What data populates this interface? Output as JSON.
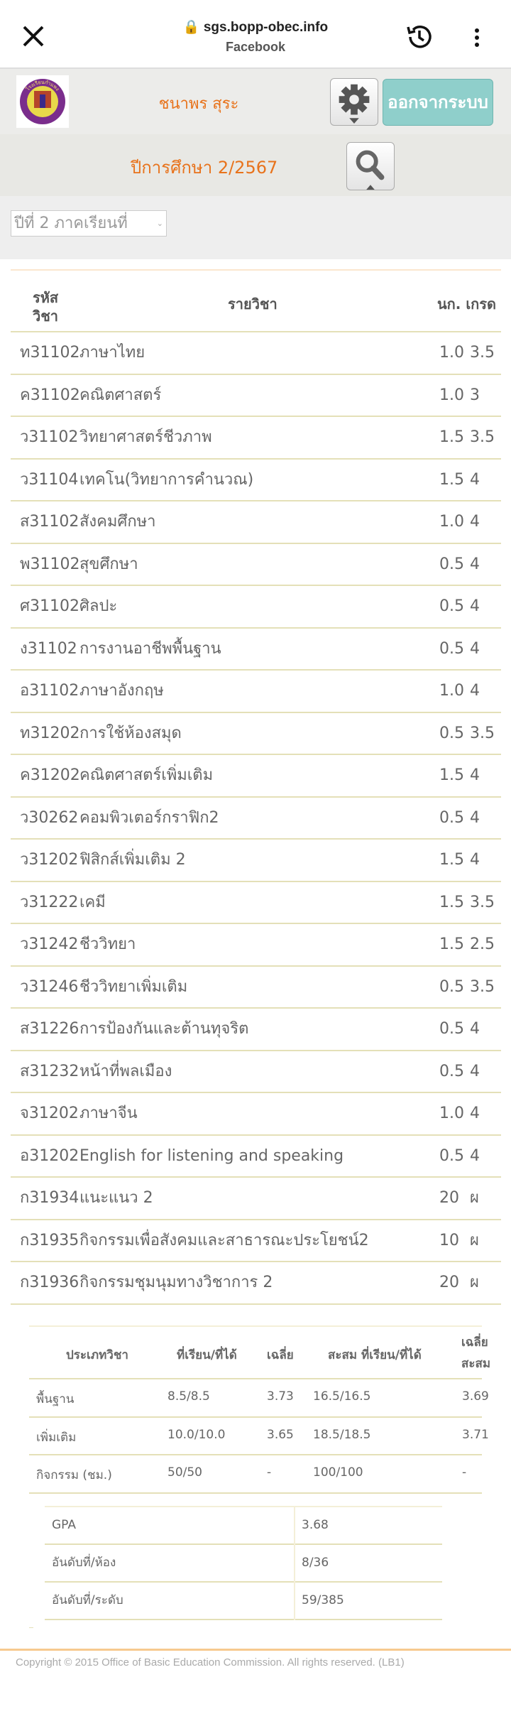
{
  "browser": {
    "url": "sgs.bopp-obec.info",
    "subtitle": "Facebook"
  },
  "header": {
    "student_name": "ชนาพร  สุระ",
    "logout_label": "ออกจากระบบ",
    "school_logo_text": "โรงเรียนกำแพง"
  },
  "term": {
    "label": "ปีการศึกษา  2/2567",
    "select_value": "ปีที่  2  ภาคเรียนที่"
  },
  "grades": {
    "headers": {
      "code_line1": "รหัส",
      "code_line2": "วิชา",
      "subject": "รายวิชา",
      "credit_grade": "นก. เกรด"
    },
    "rows": [
      {
        "code": "ท31102",
        "subject": "ภาษาไทย",
        "credit": "1.0",
        "grade": "3.5"
      },
      {
        "code": "ค31102",
        "subject": "คณิตศาสตร์",
        "credit": "1.0",
        "grade": "3"
      },
      {
        "code": "ว31102",
        "subject": "วิทยาศาสตร์ชีวภาพ",
        "credit": "1.5",
        "grade": "3.5"
      },
      {
        "code": "ว31104",
        "subject": "เทคโน(วิทยาการคำนวณ)",
        "credit": "1.5",
        "grade": "4"
      },
      {
        "code": "ส31102",
        "subject": "สังคมศึกษา",
        "credit": "1.0",
        "grade": "4"
      },
      {
        "code": "พ31102",
        "subject": "สุขศึกษา",
        "credit": "0.5",
        "grade": "4"
      },
      {
        "code": "ศ31102",
        "subject": "ศิลปะ",
        "credit": "0.5",
        "grade": "4"
      },
      {
        "code": "ง31102",
        "subject": "การงานอาชีพพื้นฐาน",
        "credit": "0.5",
        "grade": "4"
      },
      {
        "code": "อ31102",
        "subject": "ภาษาอังกฤษ",
        "credit": "1.0",
        "grade": "4"
      },
      {
        "code": "ท31202",
        "subject": "การใช้ห้องสมุด",
        "credit": "0.5",
        "grade": "3.5"
      },
      {
        "code": "ค31202",
        "subject": "คณิตศาสตร์เพิ่มเติม",
        "credit": "1.5",
        "grade": "4"
      },
      {
        "code": "ว30262",
        "subject": "คอมพิวเตอร์กราฟิก2",
        "credit": "0.5",
        "grade": "4"
      },
      {
        "code": "ว31202",
        "subject": "ฟิสิกส์เพิ่มเติม  2",
        "credit": "1.5",
        "grade": "4"
      },
      {
        "code": "ว31222",
        "subject": "เคมี",
        "credit": "1.5",
        "grade": "3.5"
      },
      {
        "code": "ว31242",
        "subject": "ชีววิทยา",
        "credit": "1.5",
        "grade": "2.5"
      },
      {
        "code": "ว31246",
        "subject": "ชีววิทยาเพิ่มเติม",
        "credit": "0.5",
        "grade": "3.5"
      },
      {
        "code": "ส31226",
        "subject": "การป้องกันและต้านทุจริต",
        "credit": "0.5",
        "grade": "4"
      },
      {
        "code": "ส31232",
        "subject": "หน้าที่พลเมือง",
        "credit": "0.5",
        "grade": "4"
      },
      {
        "code": "จ31202",
        "subject": "ภาษาจีน",
        "credit": "1.0",
        "grade": "4"
      },
      {
        "code": "อ31202",
        "subject": "English for listening and speaking",
        "credit": "0.5",
        "grade": "4"
      },
      {
        "code": "ก31934",
        "subject": "แนะแนว  2",
        "credit": "20",
        "grade": "ผ"
      },
      {
        "code": "ก31935",
        "subject": "กิจกรรมเพื่อสังคมและสาธารณะประโยชน์2",
        "credit": "10",
        "grade": "ผ"
      },
      {
        "code": "ก31936",
        "subject": "กิจกรรมชุมนุมทางวิชาการ  2",
        "credit": "20",
        "grade": "ผ"
      }
    ]
  },
  "summary": {
    "headers": {
      "type": "ประเภทวิชา",
      "taken": "ที่เรียน/ที่ได้",
      "avg": "เฉลี่ย",
      "cum_taken": "สะสม  ที่เรียน/ที่ได้",
      "cum_avg_line1": "เฉลี่ย",
      "cum_avg_line2": "สะสม"
    },
    "rows": [
      {
        "type": "พื้นฐาน",
        "taken": "8.5/8.5",
        "avg": "3.73",
        "cum_taken": "16.5/16.5",
        "cum_avg": "3.69"
      },
      {
        "type": "เพิ่มเติม",
        "taken": "10.0/10.0",
        "avg": "3.65",
        "cum_taken": "18.5/18.5",
        "cum_avg": "3.71"
      },
      {
        "type": "กิจกรรม  (ชม.)",
        "taken": "50/50",
        "avg": "-",
        "cum_taken": "100/100",
        "cum_avg": "-"
      }
    ]
  },
  "gpa": {
    "rows": [
      {
        "label": "GPA",
        "value": "3.68"
      },
      {
        "label": "อันดับที่/ห้อง",
        "value": "8/36"
      },
      {
        "label": "อันดับที่/ระดับ",
        "value": "59/385"
      }
    ]
  },
  "footer": {
    "copyright": "Copyright © 2015 Office of Basic Education Commission. All rights reserved. (LB1)"
  },
  "colors": {
    "accent_orange": "#e8731c",
    "logout_teal": "#8fcfcb",
    "row_border": "#e4e0b8"
  }
}
